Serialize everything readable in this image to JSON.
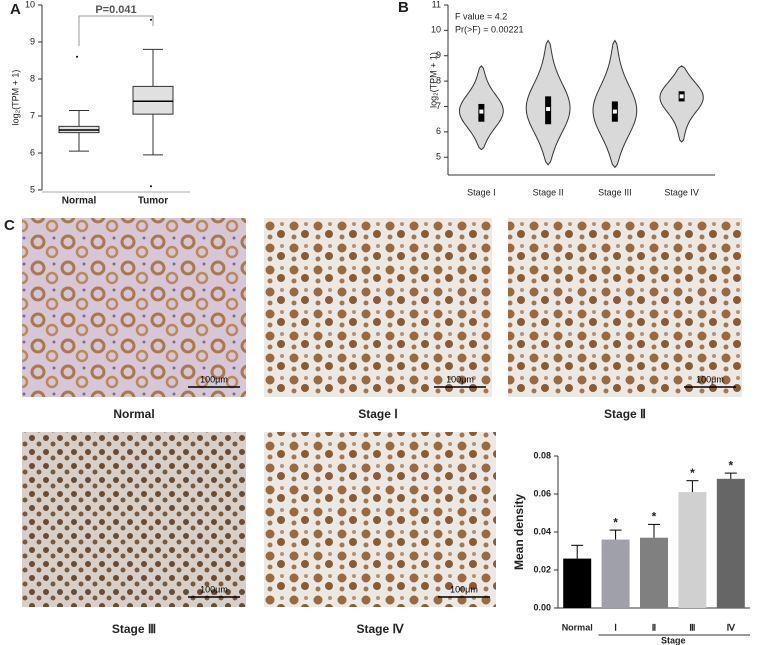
{
  "panel_labels": [
    "A",
    "B",
    "C"
  ],
  "chart_data": [
    {
      "type": "box",
      "ylabel": "log₂(TPM + 1)",
      "annotation": "P=0.041",
      "categories": [
        "Normal",
        "Tumor"
      ],
      "color": "#e0e0e0",
      "boxes": [
        {
          "min": 6.05,
          "q1": 6.55,
          "median": 6.62,
          "q3": 6.72,
          "max": 7.15,
          "outliers": [
            8.6
          ]
        },
        {
          "min": 5.95,
          "q1": 7.05,
          "median": 7.4,
          "q3": 7.8,
          "max": 8.8,
          "outliers": [
            9.6,
            5.1
          ]
        }
      ],
      "ylim": [
        5,
        10
      ],
      "yticks": [
        5,
        6,
        7,
        8,
        9,
        10
      ]
    },
    {
      "type": "violin",
      "ylabel": "log₂(TPM + 1)",
      "annotations": [
        "F value = 4.2",
        "Pr(>F) = 0.00221"
      ],
      "categories": [
        "Stage I",
        "Stage II",
        "Stage III",
        "Stage IV"
      ],
      "color": "#d9d9d9",
      "violins": [
        {
          "min": 5.3,
          "q1": 6.4,
          "median": 6.8,
          "q3": 7.1,
          "max": 8.6
        },
        {
          "min": 4.7,
          "q1": 6.3,
          "median": 6.9,
          "q3": 7.4,
          "max": 9.6
        },
        {
          "min": 4.6,
          "q1": 6.4,
          "median": 6.8,
          "q3": 7.2,
          "max": 9.6
        },
        {
          "min": 5.6,
          "q1": 7.2,
          "median": 7.4,
          "q3": 7.6,
          "max": 8.6
        }
      ],
      "ylim": [
        4.3,
        11
      ],
      "yticks": [
        5,
        6,
        7,
        8,
        9,
        10,
        11
      ]
    },
    {
      "type": "bar",
      "ylabel": "Mean density",
      "xlabel": "Stage",
      "categories": [
        "Normal",
        "Ⅰ",
        "Ⅱ",
        "Ⅲ",
        "Ⅳ"
      ],
      "values": [
        0.026,
        0.036,
        0.037,
        0.061,
        0.068
      ],
      "errors": [
        0.007,
        0.005,
        0.007,
        0.006,
        0.003
      ],
      "colors": [
        "#000000",
        "#a0a0aa",
        "#808080",
        "#d0d0d0",
        "#666666"
      ],
      "significance": [
        null,
        "*",
        "*",
        "*",
        "*"
      ],
      "ylim": [
        0,
        0.08
      ],
      "yticks": [
        {
          "value": 0,
          "label": "0.00"
        },
        {
          "value": 0.02,
          "label": "0.02"
        },
        {
          "value": 0.04,
          "label": "0.04"
        },
        {
          "value": 0.06,
          "label": "0.06"
        },
        {
          "value": 0.08,
          "label": "0.08"
        }
      ]
    }
  ],
  "micrographs": [
    {
      "label": "Normal",
      "scale_bar": "100μm"
    },
    {
      "label": "Stage Ⅰ",
      "scale_bar": "100μm"
    },
    {
      "label": "Stage Ⅱ",
      "scale_bar": "100μm"
    },
    {
      "label": "Stage Ⅲ",
      "scale_bar": "100μm"
    },
    {
      "label": "Stage Ⅳ",
      "scale_bar": "100μm"
    }
  ]
}
